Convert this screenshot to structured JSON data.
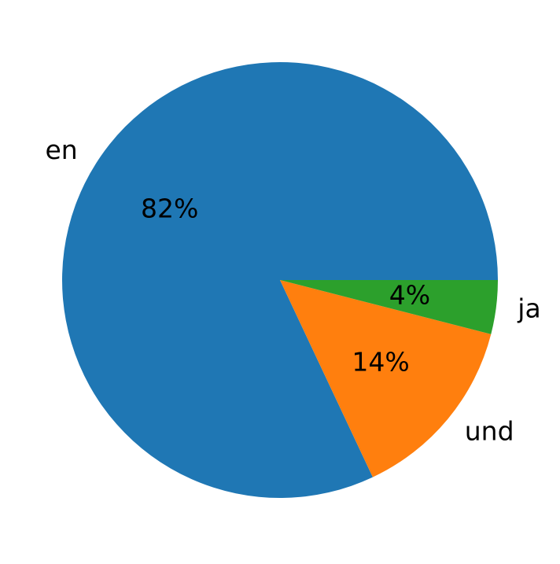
{
  "chart_data": {
    "type": "pie",
    "categories": [
      "en",
      "und",
      "ja"
    ],
    "values": [
      82,
      14,
      4
    ],
    "value_labels": [
      "82%",
      "14%",
      "4%"
    ],
    "colors": [
      "#1f77b4",
      "#ff7f0e",
      "#2ca02c"
    ]
  }
}
